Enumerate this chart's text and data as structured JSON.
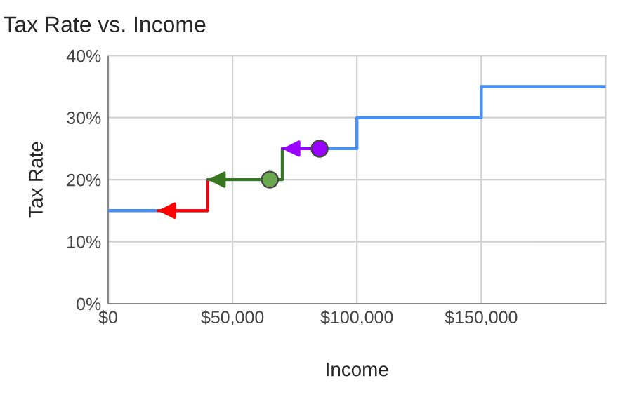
{
  "chart_data": {
    "type": "step",
    "title": "Tax Rate vs. Income",
    "xlabel": "Income",
    "ylabel": "Tax Rate",
    "xlim": [
      0,
      200000
    ],
    "xticks": [
      {
        "value": 0,
        "label": "$0"
      },
      {
        "value": 50000,
        "label": "$50,000"
      },
      {
        "value": 100000,
        "label": "$100,000"
      },
      {
        "value": 150000,
        "label": "$150,000"
      }
    ],
    "ylim": [
      0,
      40
    ],
    "yticks": [
      {
        "value": 0,
        "label": "0%"
      },
      {
        "value": 10,
        "label": "10%"
      },
      {
        "value": 20,
        "label": "20%"
      },
      {
        "value": 30,
        "label": "30%"
      },
      {
        "value": 40,
        "label": "40%"
      }
    ],
    "grid": true,
    "legend": false,
    "series": [
      {
        "color": "#4a90f0",
        "x": [
          0,
          40000,
          70000,
          100000,
          150000,
          200000
        ],
        "values": [
          15,
          20,
          25,
          30,
          35,
          35
        ]
      },
      {
        "type": "line",
        "color": "#ff0000",
        "x": [
          40000,
          40000,
          20000
        ],
        "values": [
          20,
          15,
          15
        ]
      },
      {
        "type": "line",
        "color": "#38761d",
        "x": [
          70000,
          70000,
          40000
        ],
        "values": [
          25,
          20,
          20
        ]
      },
      {
        "type": "line",
        "color": "#9900ff",
        "x": [
          85000,
          70000
        ],
        "values": [
          25,
          25
        ]
      },
      {
        "type": "scatter",
        "color": "#6aa84f",
        "marker": "circle",
        "x": [
          65000
        ],
        "values": [
          20
        ]
      },
      {
        "type": "scatter",
        "color": "#9900ff",
        "marker": "circle",
        "x": [
          85000
        ],
        "values": [
          25
        ]
      }
    ]
  }
}
